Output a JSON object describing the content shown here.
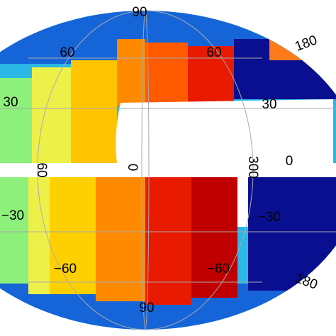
{
  "map": {
    "latitude_labels": [
      "90",
      "60",
      "60",
      "30",
      "30",
      "0",
      "−30",
      "−30",
      "−60",
      "−60",
      "90"
    ],
    "longitude_labels": [
      "180",
      "60",
      "0",
      "300",
      "180"
    ]
  }
}
